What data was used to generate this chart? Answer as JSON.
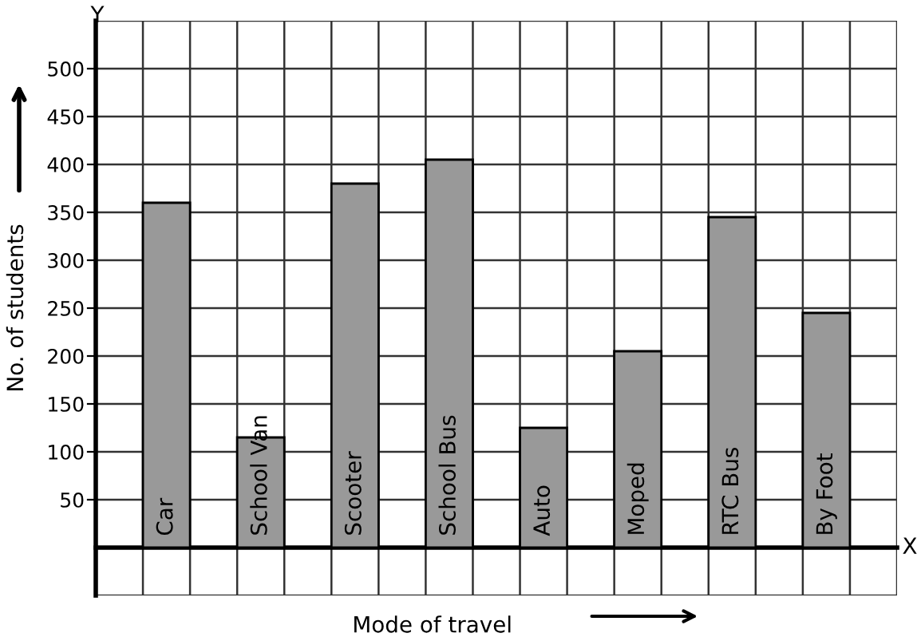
{
  "chart_data": {
    "type": "bar",
    "xlabel": "Mode of travel",
    "ylabel": "No. of students",
    "categories": [
      "Car",
      "School Van",
      "Scooter",
      "School Bus",
      "Auto",
      "Moped",
      "RTC Bus",
      "By Foot"
    ],
    "values": [
      360,
      115,
      380,
      405,
      125,
      205,
      345,
      245
    ],
    "color": "#999999",
    "ylim": [
      -50,
      550
    ],
    "yticks": [
      50,
      100,
      150,
      200,
      250,
      300,
      350,
      400,
      450,
      500
    ],
    "grid": true,
    "annotations": [
      "Y",
      "X"
    ]
  }
}
